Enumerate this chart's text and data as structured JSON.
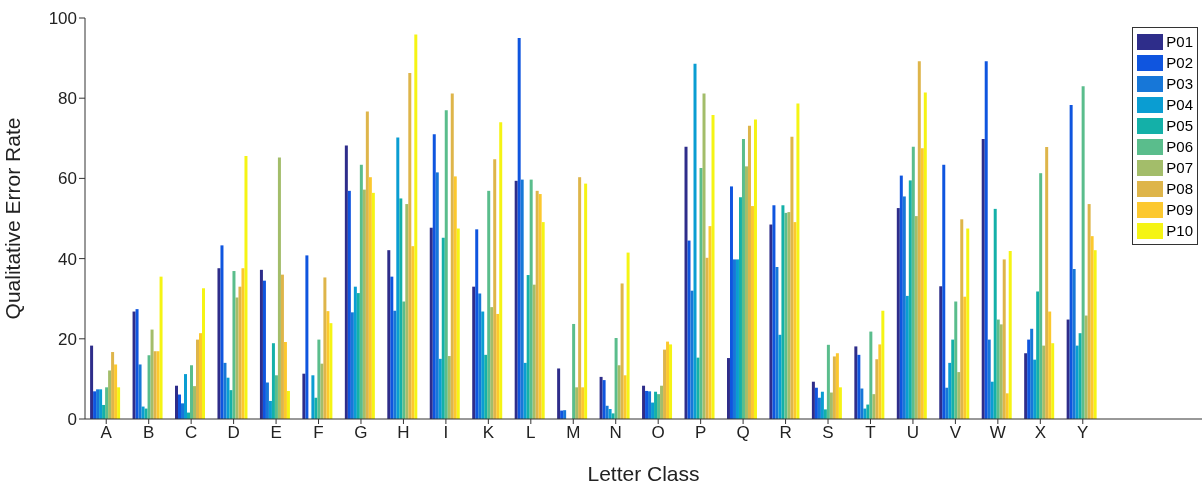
{
  "chart_data": {
    "type": "bar",
    "xlabel": "Letter Class",
    "ylabel": "Qualitative Error Rate",
    "categories": [
      "A",
      "B",
      "C",
      "D",
      "E",
      "F",
      "G",
      "H",
      "I",
      "K",
      "L",
      "M",
      "N",
      "O",
      "P",
      "Q",
      "R",
      "S",
      "T",
      "U",
      "V",
      "W",
      "X",
      "Y"
    ],
    "ylim": [
      0,
      100
    ],
    "yticks": [
      0,
      20,
      40,
      60,
      80,
      100
    ],
    "grid": false,
    "legend": "top right",
    "series": [
      {
        "name": "P01",
        "color": "#2e2d8a",
        "values": [
          18.3,
          26.8,
          8.3,
          37.6,
          37.2,
          11.3,
          68.2,
          42.1,
          47.7,
          33,
          59.4,
          12.6,
          10.5,
          8.3,
          67.9,
          15.2,
          48.5,
          9.3,
          18.1,
          52.6,
          33.1,
          69.8,
          16.4,
          24.8
        ]
      },
      {
        "name": "P02",
        "color": "#0f55df",
        "values": [
          6.9,
          27.4,
          6.1,
          43.3,
          34.5,
          40.8,
          56.9,
          35.5,
          71,
          47.3,
          95,
          2.1,
          9.7,
          7,
          44.5,
          58,
          53.3,
          7.8,
          16,
          60.7,
          63.4,
          89.2,
          19.8,
          78.3
        ]
      },
      {
        "name": "P03",
        "color": "#1777d8",
        "values": [
          7.4,
          13.6,
          3.9,
          14,
          9.1,
          0,
          26.6,
          27,
          61.5,
          31.3,
          59.7,
          2.2,
          3.3,
          6.9,
          32,
          39.8,
          37.9,
          5.3,
          7.6,
          55.5,
          7.8,
          19.8,
          22.5,
          37.4
        ]
      },
      {
        "name": "P04",
        "color": "#0a9dd2",
        "values": [
          7.4,
          3.1,
          11.2,
          10.3,
          4.5,
          10.9,
          33,
          70.2,
          15,
          26.8,
          14,
          0,
          2.5,
          4.1,
          88.6,
          39.8,
          21,
          6.8,
          2.6,
          30.7,
          14,
          9.3,
          14.8,
          18.3
        ]
      },
      {
        "name": "P05",
        "color": "#14b0a8",
        "values": [
          3.5,
          2.6,
          1.6,
          7.2,
          18.9,
          5.3,
          31.4,
          55,
          45.2,
          16,
          35.9,
          0,
          1.4,
          6.8,
          15.3,
          55.3,
          53.3,
          2.4,
          3.6,
          59.5,
          19.8,
          52.4,
          31.8,
          21.4
        ]
      },
      {
        "name": "P06",
        "color": "#5abd8c",
        "values": [
          7.9,
          15.9,
          13.4,
          36.9,
          10.9,
          19.8,
          63.4,
          29.3,
          77,
          56.9,
          59.7,
          23.7,
          20.2,
          6.2,
          62.6,
          69.8,
          51.4,
          18.5,
          21.8,
          67.9,
          29.3,
          24.8,
          61.3,
          83
        ]
      },
      {
        "name": "P07",
        "color": "#a3bd6a",
        "values": [
          12.1,
          22.3,
          8.2,
          30.3,
          65.2,
          13.8,
          57.2,
          53.6,
          15.7,
          27.9,
          33.5,
          7.9,
          13.4,
          8.3,
          81.2,
          63,
          51.6,
          6.6,
          6.2,
          50.6,
          11.7,
          23.6,
          18.3,
          25.8
        ]
      },
      {
        "name": "P08",
        "color": "#deb54a",
        "values": [
          16.7,
          16.9,
          19.8,
          33,
          36,
          35.3,
          76.7,
          86.3,
          81.2,
          64.8,
          56.9,
          60.3,
          33.8,
          17.3,
          40.2,
          73.1,
          70.4,
          15.6,
          14.9,
          89.2,
          49.8,
          39.8,
          67.8,
          53.6
        ]
      },
      {
        "name": "P09",
        "color": "#fcc82e",
        "values": [
          13.6,
          16.9,
          21.4,
          37.6,
          19.2,
          26.9,
          60.3,
          43.1,
          60.5,
          26.2,
          56.1,
          7.9,
          10.9,
          19.3,
          48.1,
          53.1,
          49.1,
          16.4,
          18.6,
          67.5,
          30.5,
          6.4,
          26.8,
          45.6
        ]
      },
      {
        "name": "P10",
        "color": "#f5f414",
        "values": [
          7.9,
          35.5,
          32.6,
          65.6,
          7,
          23.9,
          56.4,
          95.9,
          47.5,
          74,
          49.1,
          58.7,
          41.5,
          18.6,
          75.8,
          74.7,
          78.7,
          7.9,
          27,
          81.4,
          47.5,
          41.9,
          18.9,
          42.1
        ]
      }
    ]
  }
}
